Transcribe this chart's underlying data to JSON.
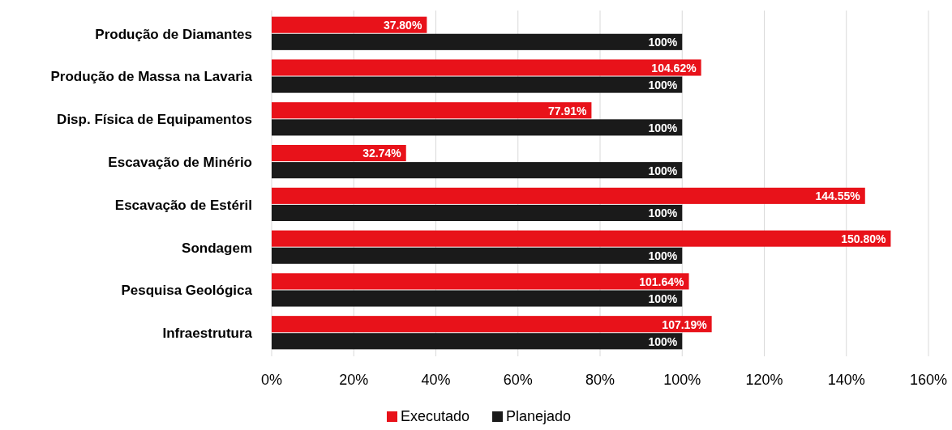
{
  "chart_data": {
    "type": "bar",
    "orientation": "horizontal",
    "categories": [
      "Produção de Diamantes",
      "Produção de Massa na Lavaria",
      "Disp. Física de Equipamentos",
      "Escavação de Minério",
      "Escavação de Estéril",
      "Sondagem",
      "Pesquisa Geológica",
      "Infraestrutura"
    ],
    "series": [
      {
        "name": "Executado",
        "color": "#e8121a",
        "values": [
          37.8,
          104.62,
          77.91,
          32.74,
          144.55,
          150.8,
          101.64,
          107.19
        ],
        "value_labels": [
          "37.80%",
          "104.62%",
          "77.91%",
          "32.74%",
          "144.55%",
          "150.80%",
          "101.64%",
          "107.19%"
        ]
      },
      {
        "name": "Planejado",
        "color": "#1a1a1a",
        "values": [
          100,
          100,
          100,
          100,
          100,
          100,
          100,
          100
        ],
        "value_labels": [
          "100%",
          "100%",
          "100%",
          "100%",
          "100%",
          "100%",
          "100%",
          "100%"
        ]
      }
    ],
    "xlim": [
      0,
      160
    ],
    "xticks": [
      {
        "value": 0,
        "label": "0%"
      },
      {
        "value": 20,
        "label": "20%"
      },
      {
        "value": 40,
        "label": "40%"
      },
      {
        "value": 60,
        "label": "60%"
      },
      {
        "value": 80,
        "label": "80%"
      },
      {
        "value": 100,
        "label": "100%"
      },
      {
        "value": 120,
        "label": "120%"
      },
      {
        "value": 140,
        "label": "140%"
      },
      {
        "value": 160,
        "label": "160%"
      }
    ],
    "grid": "x",
    "legend": "bottom"
  }
}
